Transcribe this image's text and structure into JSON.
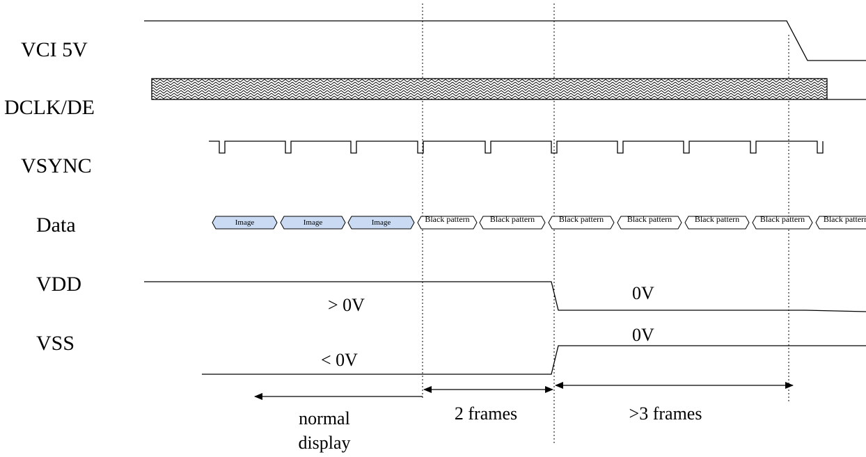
{
  "signals": {
    "vci": "VCI 5V",
    "dclk": "DCLK/DE",
    "vsync": "VSYNC",
    "data": "Data",
    "vdd": "VDD",
    "vss": "VSS"
  },
  "values": {
    "vdd_on": "> 0V",
    "vdd_off": "0V",
    "vss_off": "0V",
    "vss_on": "< 0V"
  },
  "data_cells": [
    "Image",
    "Image",
    "Image",
    "Black pattern",
    "Black pattern",
    "Black pattern",
    "Black pattern",
    "Black pattern",
    "Black pattern",
    "Black pattern"
  ],
  "intervals": {
    "normal_line1": "normal",
    "normal_line2": "display",
    "two_frames": "2 frames",
    "three_frames": ">3 frames"
  },
  "colors": {
    "image_fill": "#c9daf2",
    "line": "#000000"
  }
}
